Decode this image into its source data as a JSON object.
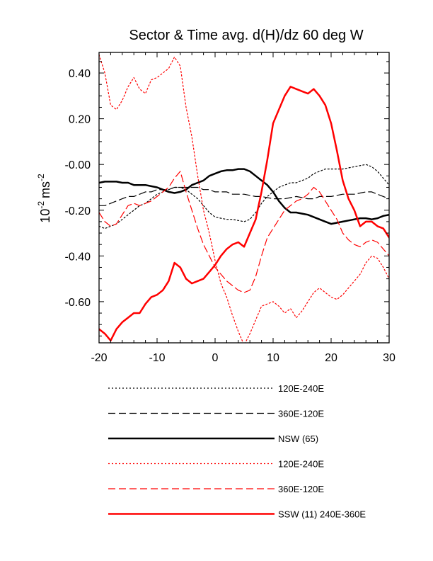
{
  "chart_data": {
    "type": "line",
    "title": "Sector & Time avg. d(H)/dz 60 deg W",
    "ylabel_base": "10",
    "ylabel_exp": "-2",
    "ylabel_unit": "ms",
    "ylabel_unit_exp": "-2",
    "xlim": [
      -20,
      30
    ],
    "ylim": [
      -0.78,
      0.49
    ],
    "x_ticks": [
      -20,
      -10,
      0,
      10,
      20,
      30
    ],
    "x_tick_labels": [
      "-20",
      "-10",
      "0",
      "10",
      "20",
      "30"
    ],
    "y_ticks": [
      -0.6,
      -0.4,
      -0.2,
      0.0,
      0.2,
      0.4
    ],
    "y_tick_labels": [
      "-0.60",
      "-0.40",
      "-0.20",
      "-0.00",
      "0.20",
      "0.40"
    ],
    "grid": false,
    "legend_placement": "below",
    "series": [
      {
        "name": "120E-240E",
        "color": "#000000",
        "style": "dotted",
        "width": 1.2,
        "points": [
          [
            -20,
            -0.27
          ],
          [
            -19,
            -0.28
          ],
          [
            -18,
            -0.27
          ],
          [
            -17,
            -0.26
          ],
          [
            -16,
            -0.24
          ],
          [
            -15,
            -0.22
          ],
          [
            -14,
            -0.2
          ],
          [
            -13,
            -0.18
          ],
          [
            -12,
            -0.17
          ],
          [
            -11,
            -0.15
          ],
          [
            -10,
            -0.13
          ],
          [
            -9,
            -0.12
          ],
          [
            -8,
            -0.11
          ],
          [
            -7,
            -0.1
          ],
          [
            -6,
            -0.1
          ],
          [
            -5,
            -0.11
          ],
          [
            -4,
            -0.13
          ],
          [
            -3,
            -0.15
          ],
          [
            -2,
            -0.18
          ],
          [
            -1,
            -0.21
          ],
          [
            0,
            -0.23
          ],
          [
            1,
            -0.235
          ],
          [
            2,
            -0.24
          ],
          [
            3,
            -0.24
          ],
          [
            4,
            -0.245
          ],
          [
            5,
            -0.25
          ],
          [
            6,
            -0.24
          ],
          [
            7,
            -0.21
          ],
          [
            8,
            -0.17
          ],
          [
            9,
            -0.14
          ],
          [
            10,
            -0.12
          ],
          [
            11,
            -0.1
          ],
          [
            12,
            -0.09
          ],
          [
            13,
            -0.08
          ],
          [
            14,
            -0.08
          ],
          [
            15,
            -0.07
          ],
          [
            16,
            -0.06
          ],
          [
            17,
            -0.04
          ],
          [
            18,
            -0.03
          ],
          [
            19,
            -0.02
          ],
          [
            20,
            -0.02
          ],
          [
            21,
            -0.02
          ],
          [
            22,
            -0.02
          ],
          [
            23,
            -0.015
          ],
          [
            24,
            -0.01
          ],
          [
            25,
            -0.005
          ],
          [
            26,
            0.0
          ],
          [
            27,
            -0.01
          ],
          [
            28,
            -0.03
          ],
          [
            29,
            -0.06
          ],
          [
            30,
            -0.09
          ]
        ]
      },
      {
        "name": "360E-120E",
        "color": "#000000",
        "style": "dashed",
        "width": 1.2,
        "points": [
          [
            -20,
            -0.18
          ],
          [
            -19,
            -0.18
          ],
          [
            -18,
            -0.17
          ],
          [
            -17,
            -0.16
          ],
          [
            -16,
            -0.15
          ],
          [
            -15,
            -0.14
          ],
          [
            -14,
            -0.14
          ],
          [
            -13,
            -0.13
          ],
          [
            -12,
            -0.12
          ],
          [
            -11,
            -0.12
          ],
          [
            -10,
            -0.11
          ],
          [
            -9,
            -0.11
          ],
          [
            -8,
            -0.11
          ],
          [
            -7,
            -0.1
          ],
          [
            -6,
            -0.1
          ],
          [
            -5,
            -0.1
          ],
          [
            -4,
            -0.1
          ],
          [
            -3,
            -0.1
          ],
          [
            -2,
            -0.11
          ],
          [
            -1,
            -0.11
          ],
          [
            0,
            -0.12
          ],
          [
            1,
            -0.12
          ],
          [
            2,
            -0.12
          ],
          [
            3,
            -0.13
          ],
          [
            4,
            -0.13
          ],
          [
            5,
            -0.13
          ],
          [
            6,
            -0.135
          ],
          [
            7,
            -0.14
          ],
          [
            8,
            -0.14
          ],
          [
            9,
            -0.145
          ],
          [
            10,
            -0.15
          ],
          [
            11,
            -0.15
          ],
          [
            12,
            -0.15
          ],
          [
            13,
            -0.145
          ],
          [
            14,
            -0.14
          ],
          [
            15,
            -0.145
          ],
          [
            16,
            -0.15
          ],
          [
            17,
            -0.15
          ],
          [
            18,
            -0.14
          ],
          [
            19,
            -0.14
          ],
          [
            20,
            -0.14
          ],
          [
            21,
            -0.135
          ],
          [
            22,
            -0.13
          ],
          [
            23,
            -0.13
          ],
          [
            24,
            -0.13
          ],
          [
            25,
            -0.125
          ],
          [
            26,
            -0.12
          ],
          [
            27,
            -0.12
          ],
          [
            28,
            -0.13
          ],
          [
            29,
            -0.14
          ],
          [
            30,
            -0.15
          ]
        ]
      },
      {
        "name": "NSW (65)",
        "color": "#000000",
        "style": "solid",
        "width": 2.5,
        "points": [
          [
            -20,
            -0.08
          ],
          [
            -19,
            -0.075
          ],
          [
            -18,
            -0.075
          ],
          [
            -17,
            -0.075
          ],
          [
            -16,
            -0.08
          ],
          [
            -15,
            -0.08
          ],
          [
            -14,
            -0.09
          ],
          [
            -13,
            -0.09
          ],
          [
            -12,
            -0.09
          ],
          [
            -11,
            -0.095
          ],
          [
            -10,
            -0.1
          ],
          [
            -9,
            -0.11
          ],
          [
            -8,
            -0.12
          ],
          [
            -7,
            -0.125
          ],
          [
            -6,
            -0.12
          ],
          [
            -5,
            -0.11
          ],
          [
            -4,
            -0.09
          ],
          [
            -3,
            -0.08
          ],
          [
            -2,
            -0.07
          ],
          [
            -1,
            -0.05
          ],
          [
            0,
            -0.04
          ],
          [
            1,
            -0.03
          ],
          [
            2,
            -0.025
          ],
          [
            3,
            -0.025
          ],
          [
            4,
            -0.02
          ],
          [
            5,
            -0.02
          ],
          [
            6,
            -0.03
          ],
          [
            7,
            -0.05
          ],
          [
            8,
            -0.07
          ],
          [
            9,
            -0.09
          ],
          [
            10,
            -0.12
          ],
          [
            11,
            -0.16
          ],
          [
            12,
            -0.19
          ],
          [
            13,
            -0.21
          ],
          [
            14,
            -0.21
          ],
          [
            15,
            -0.215
          ],
          [
            16,
            -0.22
          ],
          [
            17,
            -0.23
          ],
          [
            18,
            -0.24
          ],
          [
            19,
            -0.25
          ],
          [
            20,
            -0.26
          ],
          [
            21,
            -0.255
          ],
          [
            22,
            -0.25
          ],
          [
            23,
            -0.245
          ],
          [
            24,
            -0.24
          ],
          [
            25,
            -0.235
          ],
          [
            26,
            -0.235
          ],
          [
            27,
            -0.24
          ],
          [
            28,
            -0.235
          ],
          [
            29,
            -0.225
          ],
          [
            30,
            -0.22
          ]
        ]
      },
      {
        "name": "120E-240E",
        "color": "#ff0000",
        "style": "dotted",
        "width": 1.2,
        "points": [
          [
            -20,
            0.48
          ],
          [
            -19,
            0.4
          ],
          [
            -18,
            0.26
          ],
          [
            -17,
            0.24
          ],
          [
            -16,
            0.28
          ],
          [
            -15,
            0.34
          ],
          [
            -14,
            0.38
          ],
          [
            -13,
            0.33
          ],
          [
            -12,
            0.31
          ],
          [
            -11,
            0.37
          ],
          [
            -10,
            0.38
          ],
          [
            -9,
            0.4
          ],
          [
            -8,
            0.42
          ],
          [
            -7,
            0.47
          ],
          [
            -6,
            0.43
          ],
          [
            -5,
            0.25
          ],
          [
            -4,
            0.12
          ],
          [
            -3,
            -0.05
          ],
          [
            -2,
            -0.2
          ],
          [
            -1,
            -0.3
          ],
          [
            0,
            -0.42
          ],
          [
            1,
            -0.52
          ],
          [
            2,
            -0.58
          ],
          [
            3,
            -0.66
          ],
          [
            4,
            -0.73
          ],
          [
            5,
            -0.79
          ],
          [
            6,
            -0.74
          ],
          [
            7,
            -0.68
          ],
          [
            8,
            -0.62
          ],
          [
            9,
            -0.61
          ],
          [
            10,
            -0.6
          ],
          [
            11,
            -0.62
          ],
          [
            12,
            -0.65
          ],
          [
            13,
            -0.63
          ],
          [
            14,
            -0.67
          ],
          [
            15,
            -0.64
          ],
          [
            16,
            -0.6
          ],
          [
            17,
            -0.56
          ],
          [
            18,
            -0.54
          ],
          [
            19,
            -0.56
          ],
          [
            20,
            -0.58
          ],
          [
            21,
            -0.59
          ],
          [
            22,
            -0.57
          ],
          [
            23,
            -0.54
          ],
          [
            24,
            -0.51
          ],
          [
            25,
            -0.48
          ],
          [
            26,
            -0.43
          ],
          [
            27,
            -0.4
          ],
          [
            28,
            -0.41
          ],
          [
            29,
            -0.45
          ],
          [
            30,
            -0.5
          ]
        ]
      },
      {
        "name": "360E-120E",
        "color": "#ff0000",
        "style": "dashed",
        "width": 1.2,
        "points": [
          [
            -20,
            -0.21
          ],
          [
            -19,
            -0.25
          ],
          [
            -18,
            -0.27
          ],
          [
            -17,
            -0.26
          ],
          [
            -16,
            -0.22
          ],
          [
            -15,
            -0.18
          ],
          [
            -14,
            -0.17
          ],
          [
            -13,
            -0.18
          ],
          [
            -12,
            -0.17
          ],
          [
            -11,
            -0.16
          ],
          [
            -10,
            -0.14
          ],
          [
            -9,
            -0.12
          ],
          [
            -8,
            -0.1
          ],
          [
            -7,
            -0.06
          ],
          [
            -6,
            -0.03
          ],
          [
            -5,
            -0.12
          ],
          [
            -4,
            -0.2
          ],
          [
            -3,
            -0.28
          ],
          [
            -2,
            -0.35
          ],
          [
            -1,
            -0.4
          ],
          [
            0,
            -0.45
          ],
          [
            1,
            -0.48
          ],
          [
            2,
            -0.51
          ],
          [
            3,
            -0.53
          ],
          [
            4,
            -0.55
          ],
          [
            5,
            -0.56
          ],
          [
            6,
            -0.55
          ],
          [
            7,
            -0.49
          ],
          [
            8,
            -0.4
          ],
          [
            9,
            -0.32
          ],
          [
            10,
            -0.28
          ],
          [
            11,
            -0.24
          ],
          [
            12,
            -0.2
          ],
          [
            13,
            -0.18
          ],
          [
            14,
            -0.16
          ],
          [
            15,
            -0.15
          ],
          [
            16,
            -0.13
          ],
          [
            17,
            -0.1
          ],
          [
            18,
            -0.12
          ],
          [
            19,
            -0.16
          ],
          [
            20,
            -0.2
          ],
          [
            21,
            -0.24
          ],
          [
            22,
            -0.3
          ],
          [
            23,
            -0.33
          ],
          [
            24,
            -0.35
          ],
          [
            25,
            -0.36
          ],
          [
            26,
            -0.34
          ],
          [
            27,
            -0.33
          ],
          [
            28,
            -0.34
          ],
          [
            29,
            -0.37
          ],
          [
            30,
            -0.4
          ]
        ]
      },
      {
        "name": "SSW (11) 240E-360E",
        "color": "#ff0000",
        "style": "solid",
        "width": 2.5,
        "points": [
          [
            -20,
            -0.72
          ],
          [
            -19,
            -0.74
          ],
          [
            -18,
            -0.77
          ],
          [
            -17,
            -0.72
          ],
          [
            -16,
            -0.69
          ],
          [
            -15,
            -0.67
          ],
          [
            -14,
            -0.65
          ],
          [
            -13,
            -0.65
          ],
          [
            -12,
            -0.61
          ],
          [
            -11,
            -0.58
          ],
          [
            -10,
            -0.57
          ],
          [
            -9,
            -0.55
          ],
          [
            -8,
            -0.51
          ],
          [
            -7,
            -0.43
          ],
          [
            -6,
            -0.45
          ],
          [
            -5,
            -0.5
          ],
          [
            -4,
            -0.52
          ],
          [
            -3,
            -0.51
          ],
          [
            -2,
            -0.5
          ],
          [
            -1,
            -0.47
          ],
          [
            0,
            -0.44
          ],
          [
            1,
            -0.4
          ],
          [
            2,
            -0.37
          ],
          [
            3,
            -0.35
          ],
          [
            4,
            -0.34
          ],
          [
            5,
            -0.36
          ],
          [
            6,
            -0.3
          ],
          [
            7,
            -0.24
          ],
          [
            8,
            -0.12
          ],
          [
            9,
            0.02
          ],
          [
            10,
            0.18
          ],
          [
            11,
            0.24
          ],
          [
            12,
            0.3
          ],
          [
            13,
            0.34
          ],
          [
            14,
            0.33
          ],
          [
            15,
            0.32
          ],
          [
            16,
            0.31
          ],
          [
            17,
            0.33
          ],
          [
            18,
            0.3
          ],
          [
            19,
            0.26
          ],
          [
            20,
            0.18
          ],
          [
            21,
            0.06
          ],
          [
            22,
            -0.07
          ],
          [
            23,
            -0.15
          ],
          [
            24,
            -0.2
          ],
          [
            25,
            -0.27
          ],
          [
            26,
            -0.25
          ],
          [
            27,
            -0.25
          ],
          [
            28,
            -0.27
          ],
          [
            29,
            -0.28
          ],
          [
            30,
            -0.32
          ]
        ]
      }
    ]
  }
}
